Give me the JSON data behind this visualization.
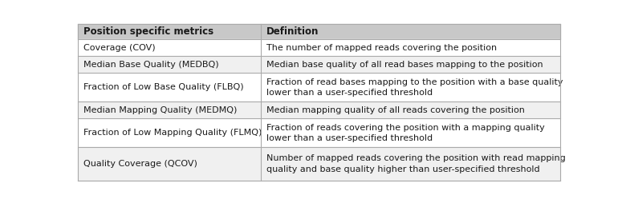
{
  "header": [
    "Position specific metrics",
    "Definition"
  ],
  "rows": [
    [
      "Coverage (COV)",
      "The number of mapped reads covering the position"
    ],
    [
      "Median Base Quality (MEDBQ)",
      "Median base quality of all read bases mapping to the position"
    ],
    [
      "Fraction of Low Base Quality (FLBQ)",
      "Fraction of read bases mapping to the position with a base quality\nlower than a user-specified threshold"
    ],
    [
      "Median Mapping Quality (MEDMQ)",
      "Median mapping quality of all reads covering the position"
    ],
    [
      "Fraction of Low Mapping Quality (FLMQ)",
      "Fraction of reads covering the position with a mapping quality\nlower than a user-specified threshold"
    ],
    [
      "Quality Coverage (QCOV)",
      "Number of mapped reads covering the position with read mapping\nquality and base quality higher than user-specified threshold"
    ]
  ],
  "col_split": 0.38,
  "header_bg": "#c8c8c8",
  "row_bg_odd": "#f0f0f0",
  "row_bg_even": "#ffffff",
  "header_font_size": 8.5,
  "body_font_size": 8.0,
  "text_color": "#1a1a1a",
  "border_color": "#aaaaaa",
  "fig_bg": "#ffffff"
}
